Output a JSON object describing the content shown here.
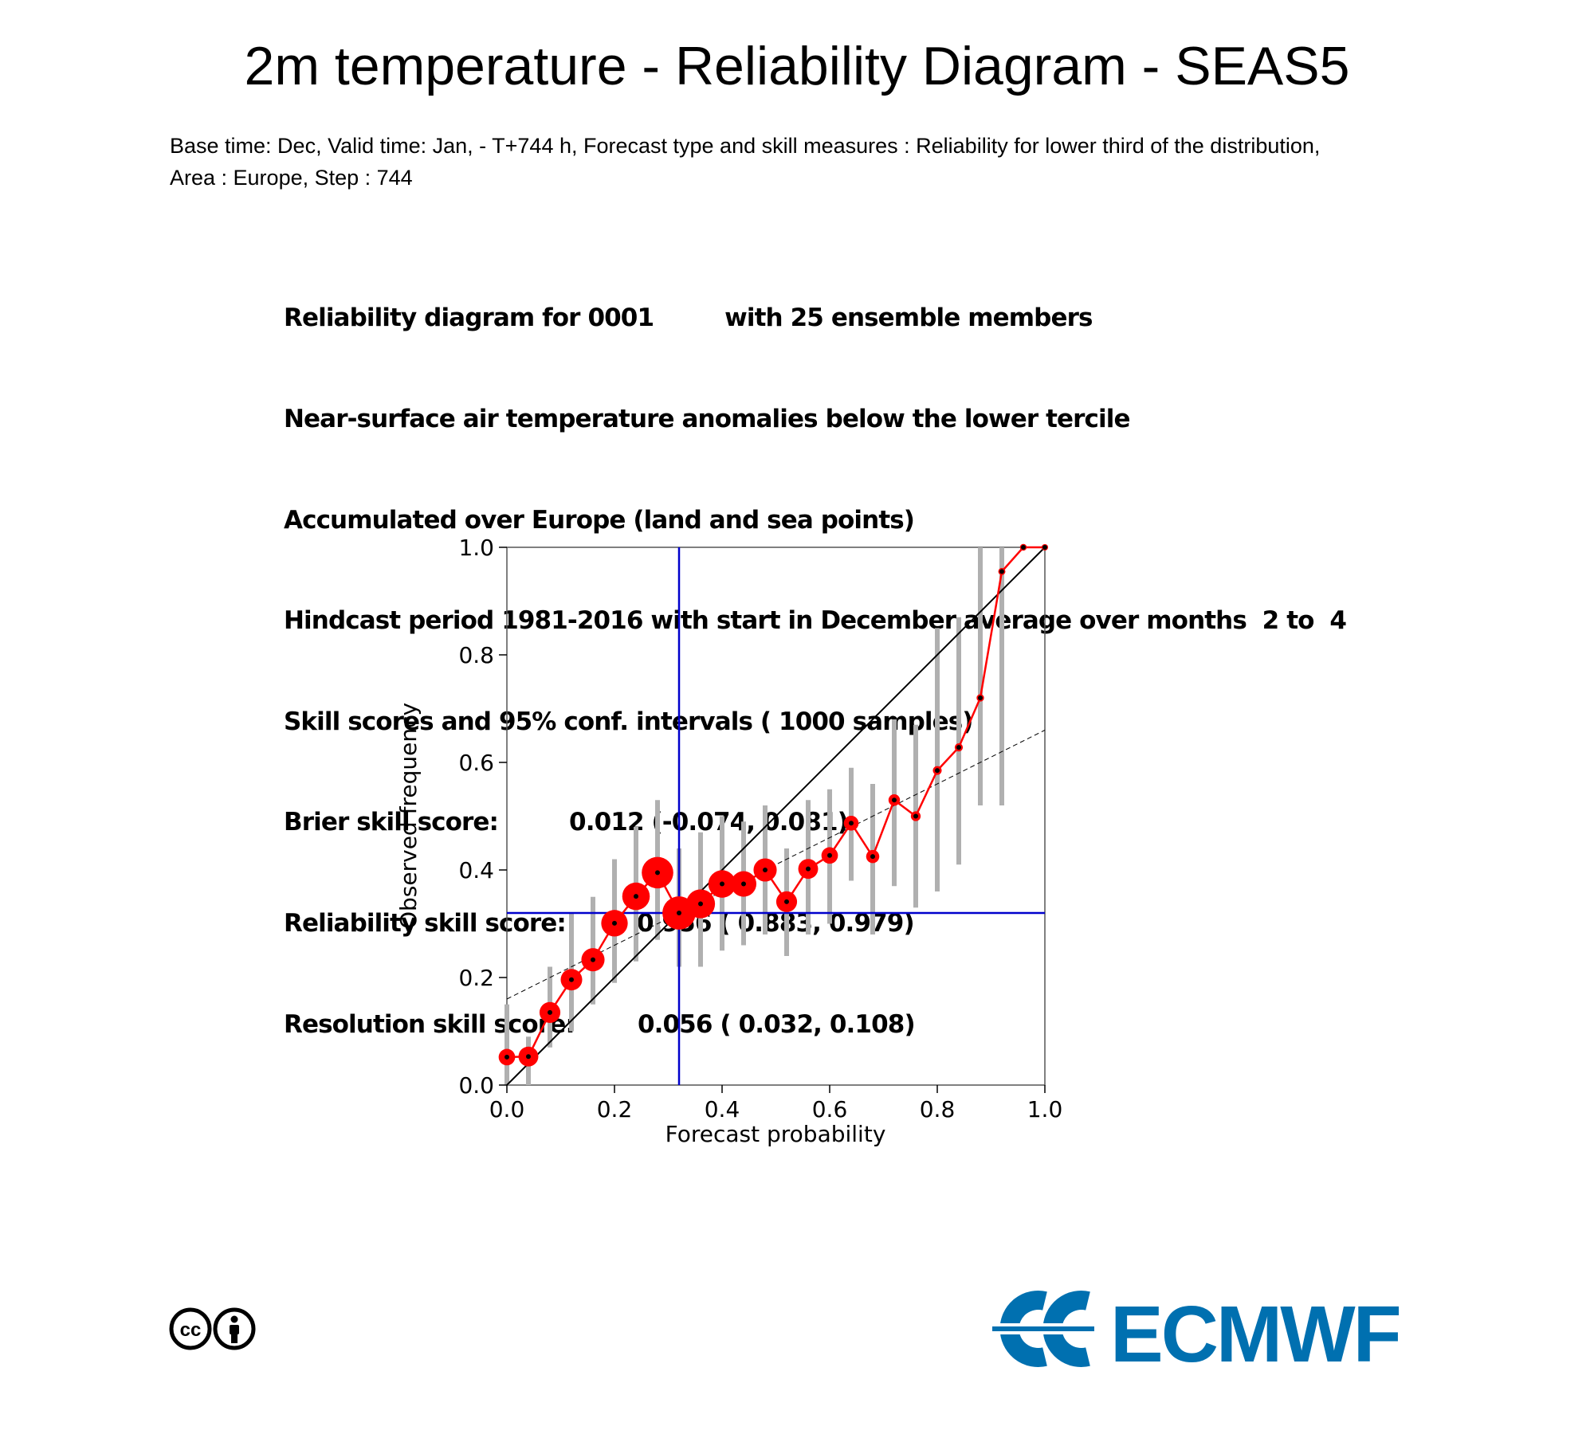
{
  "title": "2m temperature - Reliability Diagram - SEAS5",
  "subtitle": {
    "line1": "Base time: Dec, Valid time: Jan, - T+744 h, Forecast type and skill measures : Reliability for lower third of the distribution,",
    "line2": "Area : Europe, Step : 744"
  },
  "info": [
    "Reliability diagram for 0001         with 25 ensemble members",
    "Near-surface air temperature anomalies below the lower tercile",
    "Accumulated over Europe (land and sea points)",
    "Hindcast period 1981-2016 with start in December average over months  2 to  4",
    "Skill scores and 95% conf. intervals ( 1000 samples)",
    "Brier skill score:         0.012 (-0.074, 0.081)",
    "Reliability skill score:         0.956 ( 0.883, 0.979)",
    "Resolution skill score:        0.056 ( 0.032, 0.108)"
  ],
  "colors": {
    "reliability_line": "#ff0000",
    "diagonal": "#000000",
    "climatology_lines": "#0000cc",
    "confidence_bars": "#b0b0b0",
    "ecmwf_brand": "#0070b0"
  },
  "icons": [
    "cc-icon",
    "by-person-icon",
    "ecmwf-logo-icon"
  ],
  "logo_text": "ECMWF",
  "chart_data": {
    "type": "scatter",
    "xlabel": "Forecast probability",
    "ylabel": "Observed frequency",
    "xlim": [
      0,
      1
    ],
    "ylim": [
      0,
      1
    ],
    "xticks": [
      "0.0",
      "0.2",
      "0.4",
      "0.6",
      "0.8",
      "1.0"
    ],
    "yticks": [
      "0.0",
      "0.2",
      "0.4",
      "0.6",
      "0.8",
      "1.0"
    ],
    "climatology": 0.32,
    "no_skill_line": {
      "x": [
        0,
        1
      ],
      "y": [
        0.16,
        0.66
      ]
    },
    "series": [
      {
        "x": [
          0.0,
          0.04,
          0.08,
          0.12,
          0.16,
          0.2,
          0.24,
          0.28,
          0.32,
          0.36,
          0.4,
          0.44,
          0.48,
          0.52,
          0.56,
          0.6,
          0.64,
          0.68,
          0.72,
          0.76,
          0.8,
          0.84,
          0.88,
          0.92,
          0.96,
          1.0
        ],
        "y": [
          0.052,
          0.053,
          0.135,
          0.196,
          0.233,
          0.301,
          0.351,
          0.395,
          0.32,
          0.337,
          0.374,
          0.374,
          0.4,
          0.341,
          0.402,
          0.427,
          0.487,
          0.425,
          0.53,
          0.5,
          0.585,
          0.628,
          0.72,
          0.955,
          1.0,
          1.0
        ],
        "ci_low": [
          0.0,
          0.0,
          0.07,
          0.1,
          0.15,
          0.19,
          0.23,
          0.27,
          0.22,
          0.22,
          0.25,
          0.26,
          0.28,
          0.24,
          0.28,
          0.3,
          0.38,
          0.28,
          0.37,
          0.33,
          0.36,
          0.41,
          0.52,
          0.52,
          1.0,
          1.0
        ],
        "ci_high": [
          0.15,
          0.09,
          0.22,
          0.32,
          0.35,
          0.42,
          0.48,
          0.53,
          0.44,
          0.47,
          0.5,
          0.49,
          0.52,
          0.44,
          0.53,
          0.55,
          0.59,
          0.56,
          0.68,
          0.67,
          0.85,
          0.87,
          1.0,
          1.0,
          1.0,
          1.0
        ],
        "relative_size": [
          0.35,
          0.45,
          0.48,
          0.5,
          0.55,
          0.65,
          0.68,
          0.8,
          0.85,
          0.72,
          0.68,
          0.62,
          0.55,
          0.48,
          0.45,
          0.35,
          0.3,
          0.25,
          0.2,
          0.15,
          0.12,
          0.1,
          0.08,
          0.07,
          0.06,
          0.05
        ]
      }
    ]
  }
}
